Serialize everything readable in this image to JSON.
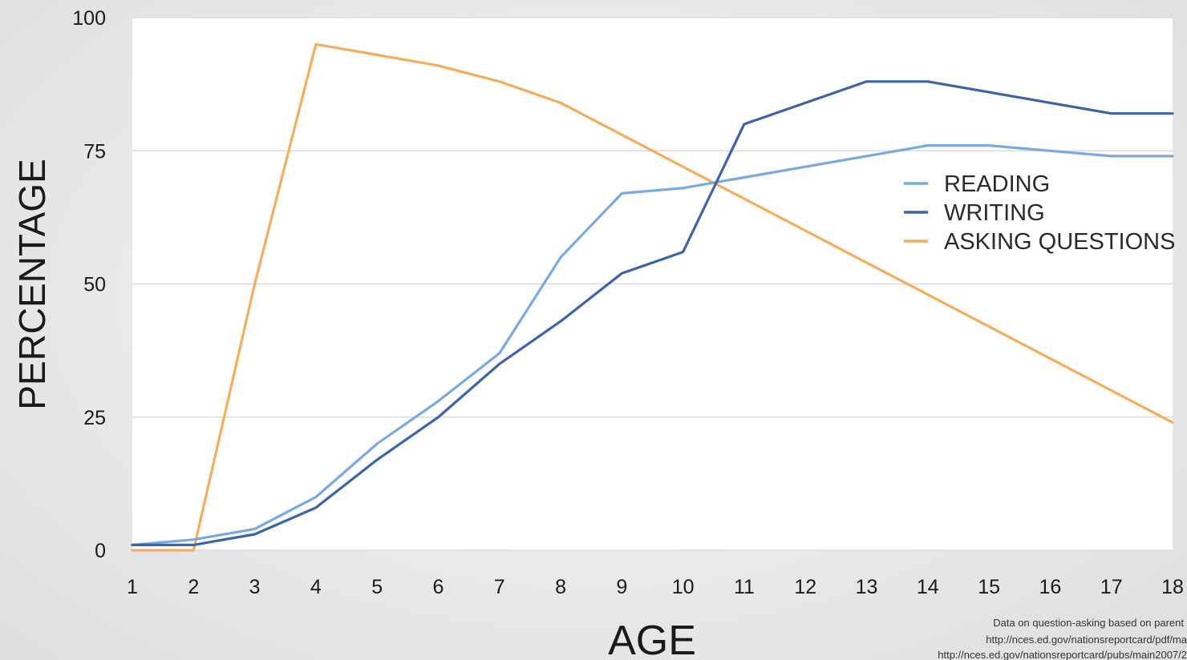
{
  "chart_data": {
    "type": "line",
    "title": "",
    "xlabel": "AGE",
    "ylabel": "PERCENTAGE",
    "x": [
      1,
      2,
      3,
      4,
      5,
      6,
      7,
      8,
      9,
      10,
      11,
      12,
      13,
      14,
      15,
      16,
      17,
      18
    ],
    "xlim": [
      1,
      18
    ],
    "ylim": [
      0,
      100
    ],
    "yticks": [
      0,
      25,
      50,
      75,
      100
    ],
    "grid": true,
    "legend_position": "right",
    "series": [
      {
        "name": "READING",
        "color": "#79a9e0",
        "values": [
          1,
          2,
          4,
          10,
          20,
          28,
          37,
          55,
          67,
          68,
          70,
          72,
          74,
          76,
          76,
          75,
          74,
          74
        ]
      },
      {
        "name": "WRITING",
        "color": "#3c64a6",
        "values": [
          1,
          1,
          3,
          8,
          17,
          25,
          35,
          43,
          52,
          56,
          80,
          84,
          88,
          88,
          86,
          84,
          82,
          82
        ]
      },
      {
        "name": "ASKING QUESTIONS",
        "color": "#f2ae5e",
        "values": [
          0,
          0,
          50,
          95,
          93,
          91,
          88,
          84,
          78,
          72,
          66,
          60,
          54,
          48,
          42,
          36,
          30,
          24
        ]
      }
    ],
    "source_note": [
      "Data on question-asking based on parent",
      "http://nces.ed.gov/nationsreportcard/pdf/ma",
      "http://nces.ed.gov/nationsreportcard/pubs/main2007/2"
    ]
  },
  "colors": {
    "plot_background": "#ffffff",
    "gridline": "#dcdcdc",
    "page_background": "#e8e8e8",
    "text": "#1a1a1a"
  }
}
